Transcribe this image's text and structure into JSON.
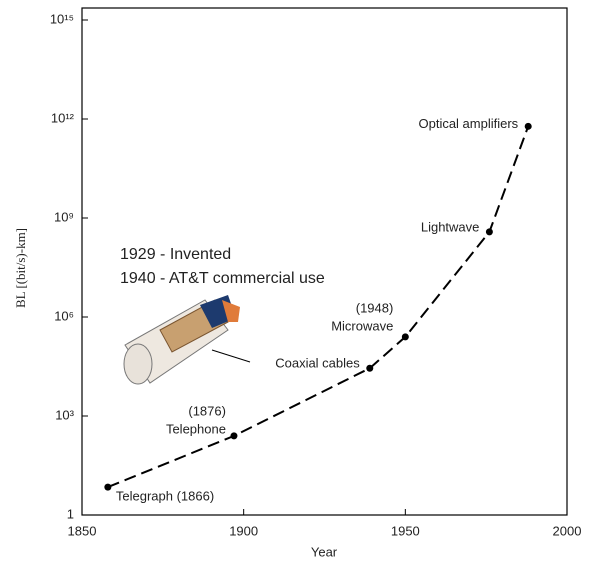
{
  "chart_data": {
    "type": "line",
    "x_label": "Year",
    "y_label": "BL [(bit/s)-km]",
    "annotations": [
      "1929 - Invented",
      "1940 - AT&T commercial use"
    ],
    "series": [
      {
        "name": "BL",
        "color": "#000000",
        "x": [
          1858,
          1897,
          1939,
          1950,
          1976,
          1988
        ],
        "values": [
          7,
          250,
          28000,
          250000,
          380000000,
          600000000000
        ],
        "labels": [
          [
            "Telegraph (1866)"
          ],
          [
            "(1876)",
            "Telephone"
          ],
          [
            "Coaxial cables"
          ],
          [
            "(1948)",
            "Microwave"
          ],
          [
            "Lightwave"
          ],
          [
            "Optical amplifiers"
          ]
        ]
      }
    ],
    "xlim": [
      1850,
      2000
    ],
    "xticks": [
      1850,
      1900,
      1950,
      2000
    ],
    "ylim": [
      1,
      1000000000000000
    ],
    "log_y": true,
    "yticks": [
      1,
      {
        "value": 1000,
        "label": "10³"
      },
      {
        "value": 1000000,
        "label": "10⁶"
      },
      {
        "value": 1000000000,
        "label": "10⁹"
      },
      {
        "value": 1000000000000,
        "label": "10¹²"
      },
      {
        "value": 1000000000000000,
        "label": "10¹⁵"
      }
    ]
  }
}
